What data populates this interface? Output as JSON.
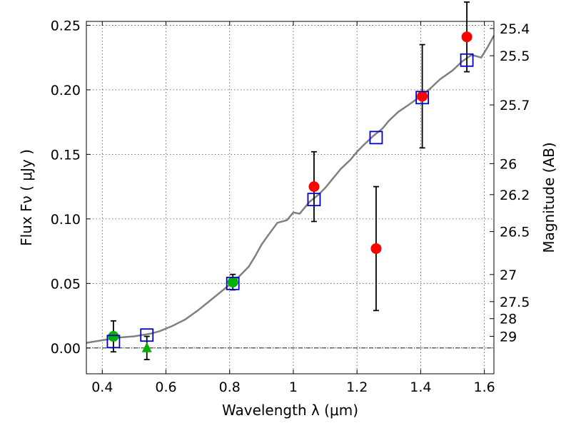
{
  "chart_data": {
    "type": "scatter",
    "xlabel": "Wavelength  λ (μm)",
    "ylabel": "Flux  Fν  ( μJy )",
    "ylabel_right": "Magnitude (AB)",
    "xlim": [
      0.35,
      1.63
    ],
    "ylim": [
      -0.02,
      0.253
    ],
    "x_ticks": [
      0.4,
      0.6,
      0.8,
      1.0,
      1.2,
      1.4,
      1.6
    ],
    "x_tick_labels": [
      "0.4",
      "0.6",
      "0.8",
      "1",
      "1.2",
      "1.4",
      "1.6"
    ],
    "y_ticks": [
      0.0,
      0.05,
      0.1,
      0.15,
      0.2,
      0.25
    ],
    "y_tick_labels": [
      "0.00",
      "0.05",
      "0.10",
      "0.15",
      "0.20",
      "0.25"
    ],
    "right_ticks": [
      {
        "label": "25.4",
        "flux": 0.2475
      },
      {
        "label": "25.5",
        "flux": 0.2264
      },
      {
        "label": "25.7",
        "flux": 0.1883
      },
      {
        "label": "26",
        "flux": 0.1428
      },
      {
        "label": "26.2",
        "flux": 0.1188
      },
      {
        "label": "26.5",
        "flux": 0.0902
      },
      {
        "label": "27",
        "flux": 0.0569
      },
      {
        "label": "27.5",
        "flux": 0.0359
      },
      {
        "label": "28",
        "flux": 0.0227
      },
      {
        "label": "29",
        "flux": 0.009
      }
    ],
    "grid": true,
    "zero_line": true,
    "colors": {
      "model": "#808080",
      "red_points": "#ff0000",
      "green_points": "#00b000",
      "model_boxes": "#0000cc",
      "errorbar": "#000000"
    },
    "series": [
      {
        "kind": "line",
        "color": "#808080",
        "x": [
          0.35,
          0.4,
          0.45,
          0.5,
          0.55,
          0.58,
          0.62,
          0.66,
          0.7,
          0.74,
          0.78,
          0.8,
          0.82,
          0.84,
          0.86,
          0.88,
          0.9,
          0.92,
          0.95,
          0.98,
          1.0,
          1.02,
          1.05,
          1.08,
          1.1,
          1.12,
          1.15,
          1.18,
          1.2,
          1.22,
          1.25,
          1.28,
          1.3,
          1.33,
          1.36,
          1.4,
          1.43,
          1.46,
          1.5,
          1.53,
          1.56,
          1.59,
          1.61,
          1.63
        ],
        "y": [
          0.004,
          0.006,
          0.008,
          0.009,
          0.011,
          0.013,
          0.017,
          0.022,
          0.029,
          0.037,
          0.045,
          0.049,
          0.053,
          0.058,
          0.063,
          0.071,
          0.08,
          0.087,
          0.097,
          0.099,
          0.105,
          0.104,
          0.113,
          0.119,
          0.124,
          0.13,
          0.139,
          0.146,
          0.152,
          0.157,
          0.164,
          0.17,
          0.176,
          0.183,
          0.188,
          0.195,
          0.201,
          0.208,
          0.215,
          0.222,
          0.227,
          0.225,
          0.233,
          0.242
        ]
      },
      {
        "kind": "errorbar",
        "marker": "circle",
        "color": "#ff0000",
        "x": [
          1.065,
          1.26,
          1.405,
          1.545
        ],
        "y": [
          0.125,
          0.077,
          0.195,
          0.241
        ],
        "yerr": [
          0.027,
          0.048,
          0.04,
          0.027
        ]
      },
      {
        "kind": "errorbar",
        "marker": "circle",
        "color": "#00b000",
        "x": [
          0.435,
          0.81
        ],
        "y": [
          0.009,
          0.051
        ],
        "yerr": [
          0.012,
          0.006
        ]
      },
      {
        "kind": "errorbar",
        "marker": "triangle",
        "color": "#00b000",
        "x": [
          0.54
        ],
        "y": [
          0.0
        ],
        "yerr": [
          0.009
        ]
      },
      {
        "kind": "scatter",
        "marker": "square",
        "color": "#0000cc",
        "x": [
          0.435,
          0.54,
          0.81,
          1.065,
          1.26,
          1.405,
          1.545
        ],
        "y": [
          0.005,
          0.01,
          0.05,
          0.115,
          0.163,
          0.194,
          0.223
        ]
      }
    ]
  }
}
